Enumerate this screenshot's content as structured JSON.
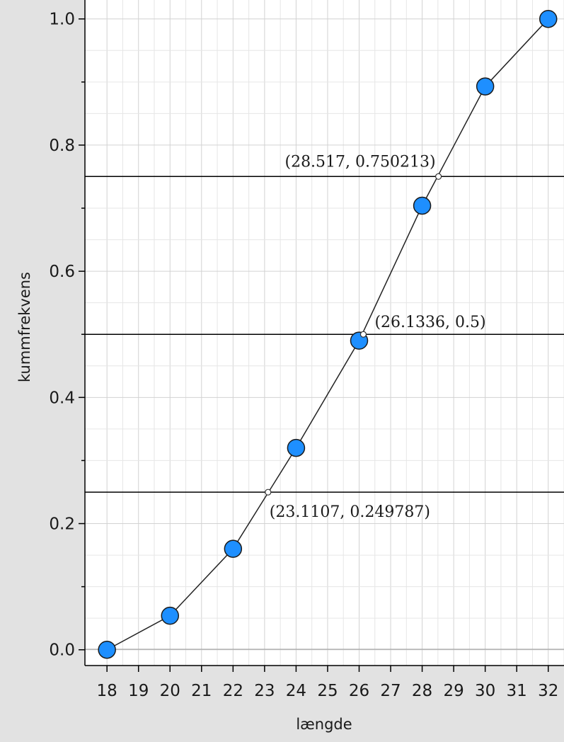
{
  "chart_data": {
    "type": "line",
    "title": "",
    "xlabel": "længde",
    "ylabel": "kummfrekvens",
    "xlim": [
      17.3,
      32.5
    ],
    "ylim": [
      -0.025,
      1.03
    ],
    "grid": true,
    "x_ticks": [
      18,
      19,
      20,
      21,
      22,
      23,
      24,
      25,
      26,
      27,
      28,
      29,
      30,
      31,
      32
    ],
    "y_ticks": [
      0.0,
      0.2,
      0.4,
      0.6,
      0.8,
      1.0
    ],
    "y_tick_labels": [
      "0.0",
      "0.2",
      "0.4",
      "0.6",
      "0.8",
      "1.0"
    ],
    "series": [
      {
        "x": [
          18,
          20,
          22,
          24,
          26,
          28,
          30,
          32
        ],
        "y": [
          0.0,
          0.054,
          0.16,
          0.32,
          0.49,
          0.704,
          0.893,
          1.0
        ],
        "color": "#1e8fff"
      }
    ],
    "reference_lines": [
      0.249787,
      0.5,
      0.750213
    ],
    "annotations": [
      {
        "x": 28.517,
        "y": 0.750213,
        "label": "(28.517, 0.750213)",
        "anchor": "above-left"
      },
      {
        "x": 26.1336,
        "y": 0.5,
        "label": "(26.1336, 0.5)",
        "anchor": "above-right"
      },
      {
        "x": 23.1107,
        "y": 0.249787,
        "label": "(23.1107, 0.249787)",
        "anchor": "below-right"
      }
    ]
  }
}
